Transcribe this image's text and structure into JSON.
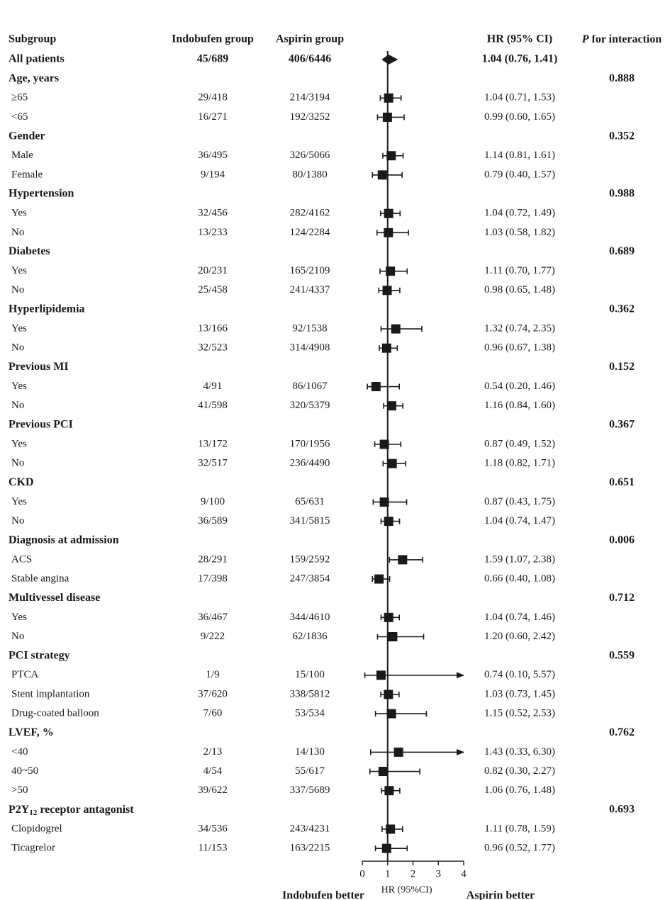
{
  "chart_data": {
    "type": "forest",
    "headers": {
      "subgroup": "Subgroup",
      "indobufen": "Indobufen group",
      "aspirin": "Aspirin group",
      "hr": "HR (95% CI)",
      "p_italic": "P",
      "p_rest": " for interaction"
    },
    "rows": [
      {
        "label": "All patients",
        "kind": "overall",
        "indo": "45/689",
        "asp": "406/6446",
        "hr": 1.04,
        "lo": 0.76,
        "hi": 1.41,
        "hr_text": "1.04 (0.76, 1.41)",
        "p": ""
      },
      {
        "label": "Age, years",
        "kind": "group",
        "p": "0.888"
      },
      {
        "label": "≥65",
        "kind": "sub",
        "indo": "29/418",
        "asp": "214/3194",
        "hr": 1.04,
        "lo": 0.71,
        "hi": 1.53,
        "hr_text": "1.04 (0.71, 1.53)"
      },
      {
        "label": "<65",
        "kind": "sub",
        "indo": "16/271",
        "asp": "192/3252",
        "hr": 0.99,
        "lo": 0.6,
        "hi": 1.65,
        "hr_text": "0.99 (0.60, 1.65)"
      },
      {
        "label": "Gender",
        "kind": "group",
        "p": "0.352"
      },
      {
        "label": "Male",
        "kind": "sub",
        "indo": "36/495",
        "asp": "326/5066",
        "hr": 1.14,
        "lo": 0.81,
        "hi": 1.61,
        "hr_text": "1.14 (0.81, 1.61)"
      },
      {
        "label": "Female",
        "kind": "sub",
        "indo": "9/194",
        "asp": "80/1380",
        "hr": 0.79,
        "lo": 0.4,
        "hi": 1.57,
        "hr_text": "0.79 (0.40, 1.57)"
      },
      {
        "label": "Hypertension",
        "kind": "group",
        "p": "0.988"
      },
      {
        "label": "Yes",
        "kind": "sub",
        "indo": "32/456",
        "asp": "282/4162",
        "hr": 1.04,
        "lo": 0.72,
        "hi": 1.49,
        "hr_text": "1.04 (0.72, 1.49)"
      },
      {
        "label": "No",
        "kind": "sub",
        "indo": "13/233",
        "asp": "124/2284",
        "hr": 1.03,
        "lo": 0.58,
        "hi": 1.82,
        "hr_text": "1.03 (0.58, 1.82)"
      },
      {
        "label": "Diabetes",
        "kind": "group",
        "p": "0.689"
      },
      {
        "label": "Yes",
        "kind": "sub",
        "indo": "20/231",
        "asp": "165/2109",
        "hr": 1.11,
        "lo": 0.7,
        "hi": 1.77,
        "hr_text": "1.11 (0.70, 1.77)"
      },
      {
        "label": "No",
        "kind": "sub",
        "indo": "25/458",
        "asp": "241/4337",
        "hr": 0.98,
        "lo": 0.65,
        "hi": 1.48,
        "hr_text": "0.98 (0.65, 1.48)"
      },
      {
        "label": "Hyperlipidemia",
        "kind": "group",
        "p": "0.362"
      },
      {
        "label": "Yes",
        "kind": "sub",
        "indo": "13/166",
        "asp": "92/1538",
        "hr": 1.32,
        "lo": 0.74,
        "hi": 2.35,
        "hr_text": "1.32 (0.74, 2.35)"
      },
      {
        "label": "No",
        "kind": "sub",
        "indo": "32/523",
        "asp": "314/4908",
        "hr": 0.96,
        "lo": 0.67,
        "hi": 1.38,
        "hr_text": "0.96 (0.67, 1.38)"
      },
      {
        "label": "Previous MI",
        "kind": "group",
        "p": "0.152"
      },
      {
        "label": "Yes",
        "kind": "sub",
        "indo": "4/91",
        "asp": "86/1067",
        "hr": 0.54,
        "lo": 0.2,
        "hi": 1.46,
        "hr_text": "0.54 (0.20, 1.46)"
      },
      {
        "label": "No",
        "kind": "sub",
        "indo": "41/598",
        "asp": "320/5379",
        "hr": 1.16,
        "lo": 0.84,
        "hi": 1.6,
        "hr_text": "1.16 (0.84, 1.60)"
      },
      {
        "label": "Previous PCI",
        "kind": "group",
        "p": "0.367"
      },
      {
        "label": "Yes",
        "kind": "sub",
        "indo": "13/172",
        "asp": "170/1956",
        "hr": 0.87,
        "lo": 0.49,
        "hi": 1.52,
        "hr_text": "0.87 (0.49, 1.52)"
      },
      {
        "label": "No",
        "kind": "sub",
        "indo": "32/517",
        "asp": "236/4490",
        "hr": 1.18,
        "lo": 0.82,
        "hi": 1.71,
        "hr_text": "1.18 (0.82, 1.71)"
      },
      {
        "label": "CKD",
        "kind": "group",
        "p": "0.651"
      },
      {
        "label": "Yes",
        "kind": "sub",
        "indo": "9/100",
        "asp": "65/631",
        "hr": 0.87,
        "lo": 0.43,
        "hi": 1.75,
        "hr_text": "0.87 (0.43, 1.75)"
      },
      {
        "label": "No",
        "kind": "sub",
        "indo": "36/589",
        "asp": "341/5815",
        "hr": 1.04,
        "lo": 0.74,
        "hi": 1.47,
        "hr_text": "1.04 (0.74, 1.47)"
      },
      {
        "label": "Diagnosis at admission",
        "kind": "group",
        "p": "0.006"
      },
      {
        "label": "ACS",
        "kind": "sub",
        "indo": "28/291",
        "asp": "159/2592",
        "hr": 1.59,
        "lo": 1.07,
        "hi": 2.38,
        "hr_text": "1.59 (1.07, 2.38)"
      },
      {
        "label": "Stable angina",
        "kind": "sub",
        "indo": "17/398",
        "asp": "247/3854",
        "hr": 0.66,
        "lo": 0.4,
        "hi": 1.08,
        "hr_text": "0.66 (0.40, 1.08)"
      },
      {
        "label": "Multivessel disease",
        "kind": "group",
        "p": "0.712"
      },
      {
        "label": "Yes",
        "kind": "sub",
        "indo": "36/467",
        "asp": "344/4610",
        "hr": 1.04,
        "lo": 0.74,
        "hi": 1.46,
        "hr_text": "1.04 (0.74, 1.46)"
      },
      {
        "label": "No",
        "kind": "sub",
        "indo": "9/222",
        "asp": "62/1836",
        "hr": 1.2,
        "lo": 0.6,
        "hi": 2.42,
        "hr_text": "1.20 (0.60, 2.42)"
      },
      {
        "label": "PCI strategy",
        "kind": "group",
        "p": "0.559"
      },
      {
        "label": "PTCA",
        "kind": "sub",
        "indo": "1/9",
        "asp": "15/100",
        "hr": 0.74,
        "lo": 0.1,
        "hi": 5.57,
        "hr_text": "0.74 (0.10, 5.57)"
      },
      {
        "label": "Stent implantation",
        "kind": "sub",
        "indo": "37/620",
        "asp": "338/5812",
        "hr": 1.03,
        "lo": 0.73,
        "hi": 1.45,
        "hr_text": "1.03 (0.73, 1.45)"
      },
      {
        "label": "Drug-coated balloon",
        "kind": "sub",
        "indo": "7/60",
        "asp": "53/534",
        "hr": 1.15,
        "lo": 0.52,
        "hi": 2.53,
        "hr_text": "1.15 (0.52, 2.53)"
      },
      {
        "label": "LVEF, %",
        "kind": "group",
        "p": "0.762"
      },
      {
        "label": "<40",
        "kind": "sub",
        "indo": "2/13",
        "asp": "14/130",
        "hr": 1.43,
        "lo": 0.33,
        "hi": 6.3,
        "hr_text": "1.43 (0.33, 6.30)"
      },
      {
        "label": "40~50",
        "kind": "sub",
        "indo": "4/54",
        "asp": "55/617",
        "hr": 0.82,
        "lo": 0.3,
        "hi": 2.27,
        "hr_text": "0.82 (0.30, 2.27)"
      },
      {
        "label": ">50",
        "kind": "sub",
        "indo": "39/622",
        "asp": "337/5689",
        "hr": 1.06,
        "lo": 0.76,
        "hi": 1.48,
        "hr_text": "1.06 (0.76, 1.48)"
      },
      {
        "label": "P2Y",
        "label_sub": "12",
        "label_rest": " receptor antagonist",
        "kind": "group",
        "p": "0.693"
      },
      {
        "label": "Clopidogrel",
        "kind": "sub",
        "indo": "34/536",
        "asp": "243/4231",
        "hr": 1.11,
        "lo": 0.78,
        "hi": 1.59,
        "hr_text": "1.11 (0.78, 1.59)"
      },
      {
        "label": "Ticagrelor",
        "kind": "sub",
        "indo": "11/153",
        "asp": "163/2215",
        "hr": 0.96,
        "lo": 0.52,
        "hi": 1.77,
        "hr_text": "0.96 (0.52, 1.77)"
      }
    ],
    "xlim": [
      0,
      4
    ],
    "ticks": [
      0,
      1,
      2,
      3,
      4
    ],
    "reference_line": 1,
    "xlabel": "HR (95%CI)",
    "left_favors": "Indobufen better",
    "right_favors": "Aspirin better",
    "marker_color": "#1a1a1a"
  }
}
